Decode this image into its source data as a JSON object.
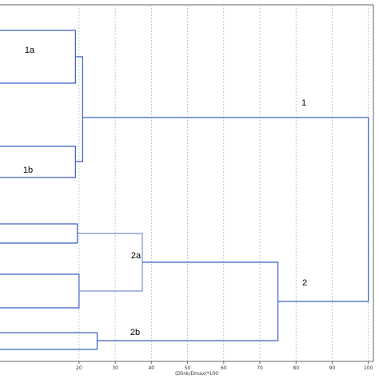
{
  "chart_data": {
    "type": "dendrogram",
    "orientation": "horizontal",
    "xlabel": "(Dlink/Dmax)*100",
    "xlim": [
      0,
      100
    ],
    "xticks": [
      "20",
      "30",
      "40",
      "50",
      "60",
      "70",
      "80",
      "90",
      "100"
    ],
    "grid": true,
    "line_colors": {
      "primary": "#3a5fc4",
      "secondary": "#7a8fd4"
    },
    "links": [
      {
        "id": "1a",
        "label": "1a",
        "height": 19
      },
      {
        "id": "1b",
        "label": "1b",
        "height": 19
      },
      {
        "id": "1",
        "label": "1",
        "height": 21
      },
      {
        "id": "2a-i",
        "label": "",
        "height": 19.5
      },
      {
        "id": "2a-ii",
        "label": "",
        "height": 20
      },
      {
        "id": "2a",
        "label": "2a",
        "height": 37.5
      },
      {
        "id": "2b",
        "label": "2b",
        "height": 25
      },
      {
        "id": "2",
        "label": "2",
        "height": 75
      },
      {
        "id": "root",
        "label": "",
        "height": 100
      }
    ]
  }
}
